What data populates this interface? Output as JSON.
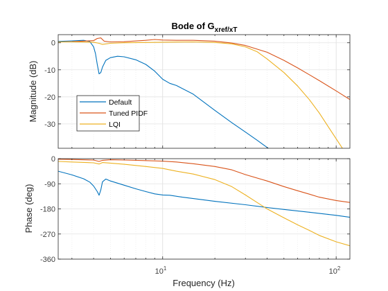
{
  "chart_data": {
    "type": "line",
    "title": {
      "main": "Bode of G",
      "subscript": "xref/xT"
    },
    "xlabel": "Frequency  (Hz)",
    "xscale": "log",
    "xlim": [
      2.5,
      120
    ],
    "x_tick_labels": {
      "base": "10",
      "exponents": [
        "1",
        "2"
      ]
    },
    "x_tick_values": [
      10,
      100
    ],
    "legend": {
      "position": "left",
      "entries": [
        "Default",
        "Tuned PIDF",
        "LQI"
      ]
    },
    "colors": {
      "Default": "#0072BD",
      "Tuned PIDF": "#D95319",
      "LQI": "#EDB120"
    },
    "grid": true,
    "subplots": [
      {
        "name": "magnitude",
        "ylabel": "Magnitude (dB)",
        "ylim": [
          -39,
          3
        ],
        "yticks": [
          0,
          -10,
          -20,
          -30
        ],
        "ytick_labels": [
          "0",
          "-10",
          "-20",
          "-30"
        ],
        "series": [
          {
            "name": "Default",
            "x": [
              2.5,
              3.0,
              3.5,
              3.8,
              4.0,
              4.1,
              4.2,
              4.3,
              4.4,
              4.5,
              4.7,
              5.0,
              5.5,
              6.0,
              7.0,
              8.0,
              9.0,
              10.0,
              11.0,
              12.0,
              15.0,
              20.0,
              25.0,
              30.0,
              35.0,
              40.0,
              42.0
            ],
            "y": [
              0.5,
              0.7,
              0.9,
              0.5,
              -1.5,
              -4.0,
              -8.0,
              -11.5,
              -11.0,
              -9.0,
              -6.5,
              -5.5,
              -5.0,
              -5.2,
              -6.3,
              -8.0,
              -10.5,
              -13.5,
              -15.0,
              -15.8,
              -19.0,
              -25.0,
              -29.5,
              -33.0,
              -36.0,
              -38.7,
              -39.5
            ]
          },
          {
            "name": "Tuned PIDF",
            "x": [
              2.5,
              3.0,
              4.0,
              4.2,
              4.4,
              4.6,
              5.0,
              6.0,
              8.0,
              9.0,
              10.0,
              12.0,
              15.0,
              20.0,
              25.0,
              30.0,
              40.0,
              50.0,
              60.0,
              70.0,
              80.0,
              100.0,
              120.0
            ],
            "y": [
              0.3,
              0.4,
              0.8,
              1.6,
              1.8,
              0.6,
              0.3,
              0.4,
              0.9,
              1.2,
              1.0,
              0.9,
              0.9,
              0.6,
              -0.1,
              -1.0,
              -3.5,
              -6.5,
              -9.3,
              -11.8,
              -14.0,
              -17.8,
              -21.0
            ]
          },
          {
            "name": "LQI",
            "x": [
              2.5,
              3.0,
              4.0,
              4.3,
              4.5,
              5.0,
              6.0,
              8.0,
              10.0,
              15.0,
              20.0,
              25.0,
              30.0,
              35.0,
              40.0,
              50.0,
              60.0,
              70.0,
              80.0,
              90.0,
              100.0,
              110.0
            ],
            "y": [
              0.3,
              0.3,
              0.2,
              -0.2,
              -0.6,
              -0.2,
              0.0,
              0.1,
              0.2,
              0.3,
              0.1,
              -0.4,
              -1.5,
              -3.3,
              -6.0,
              -11.0,
              -16.0,
              -21.0,
              -26.0,
              -31.0,
              -35.5,
              -39.5
            ]
          }
        ]
      },
      {
        "name": "phase",
        "ylabel": "Phase (deg)",
        "ylim": [
          -360,
          0
        ],
        "yticks": [
          0,
          -90,
          -180,
          -270,
          -360
        ],
        "ytick_labels": [
          "0",
          "-90",
          "-180",
          "-270",
          "-360"
        ],
        "series": [
          {
            "name": "Default",
            "x": [
              2.5,
              3.0,
              3.5,
              3.8,
              4.0,
              4.2,
              4.3,
              4.4,
              4.5,
              4.7,
              5.0,
              6.0,
              7.0,
              8.0,
              9.0,
              10.0,
              11.0,
              13.0,
              16.0,
              20.0,
              30.0,
              40.0,
              50.0,
              70.0,
              100.0,
              120.0
            ],
            "y": [
              -45,
              -58,
              -72,
              -84,
              -98,
              -118,
              -131,
              -112,
              -83,
              -73,
              -80,
              -95,
              -108,
              -118,
              -126,
              -130,
              -131,
              -138,
              -145,
              -153,
              -165,
              -175,
              -182,
              -192,
              -203,
              -210
            ]
          },
          {
            "name": "Tuned PIDF",
            "x": [
              2.5,
              3.0,
              4.0,
              4.3,
              4.5,
              5.0,
              6.0,
              8.0,
              10.0,
              12.0,
              15.0,
              20.0,
              25.0,
              30.0,
              40.0,
              50.0,
              60.0,
              70.0,
              80.0,
              100.0,
              120.0
            ],
            "y": [
              -2,
              -3,
              -5,
              -10,
              -6,
              -4,
              -5,
              -7,
              -9,
              -12,
              -18,
              -28,
              -40,
              -57,
              -80,
              -100,
              -115,
              -127,
              -138,
              -150,
              -157
            ]
          },
          {
            "name": "LQI",
            "x": [
              2.5,
              3.0,
              4.0,
              4.3,
              4.5,
              5.0,
              6.0,
              8.0,
              10.0,
              12.0,
              15.0,
              20.0,
              25.0,
              30.0,
              35.0,
              40.0,
              50.0,
              60.0,
              70.0,
              80.0,
              100.0,
              120.0
            ],
            "y": [
              -10,
              -12,
              -15,
              -19,
              -14,
              -16,
              -20,
              -28,
              -35,
              -45,
              -55,
              -75,
              -100,
              -130,
              -157,
              -180,
              -212,
              -237,
              -257,
              -275,
              -298,
              -312
            ]
          }
        ]
      }
    ]
  }
}
